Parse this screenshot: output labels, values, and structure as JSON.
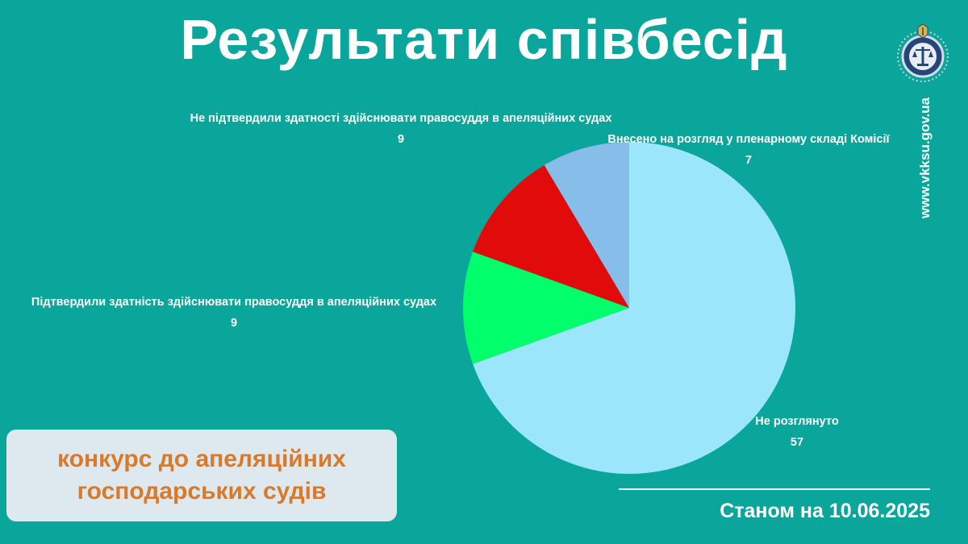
{
  "title": "Результати співбесід",
  "site_url": "www.vkksu.gov.ua",
  "contest": {
    "line1": "конкурс до апеляційних",
    "line2": "господарських судів"
  },
  "status_date": "Станом на 10.06.2025",
  "colors": {
    "background": "#0aa59b",
    "contest_text": "#d97a2b",
    "contest_box": "#dde8ef"
  },
  "chart_data": {
    "type": "pie",
    "slices": [
      {
        "label": "Не розглянуто",
        "value": 57,
        "color": "#9be6fb"
      },
      {
        "label": "Підтвердили здатність здійснювати правосуддя в апеляційних судах",
        "value": 9,
        "color": "#00ff6a"
      },
      {
        "label": "Не підтвердили здатності здійснювати правосуддя в апеляційних судах",
        "value": 9,
        "color": "#e20b0b"
      },
      {
        "label": "Внесено на розгляд у пленарному складі Комісії",
        "value": 7,
        "color": "#86bde9"
      }
    ]
  }
}
